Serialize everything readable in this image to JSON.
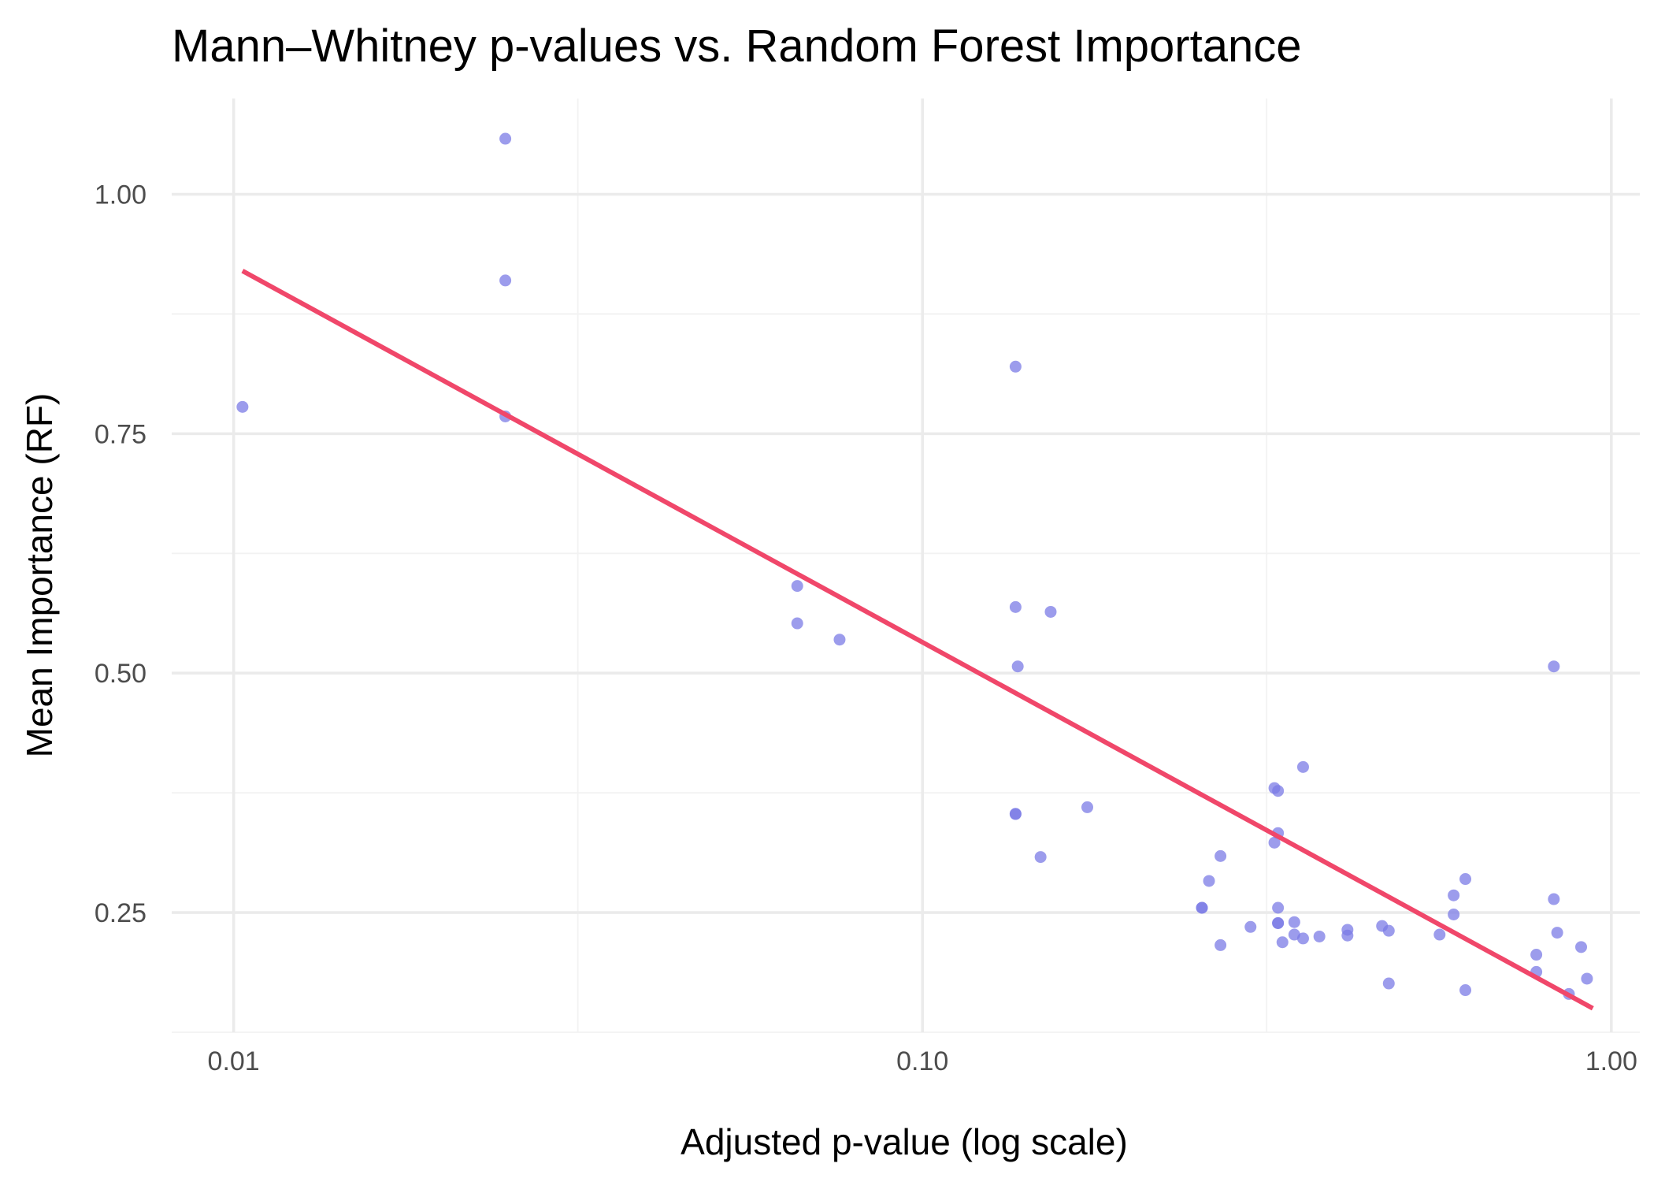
{
  "chart_data": {
    "type": "scatter",
    "title": "Mann–Whitney p-values vs. Random Forest Importance",
    "xlabel": "Adjusted p-value (log scale)",
    "ylabel": "Mean Importance (RF)",
    "x_scale": "log10",
    "xlim": [
      0.00813,
      1.1
    ],
    "ylim": [
      0.125,
      1.1
    ],
    "x_ticks": [
      0.01,
      0.1,
      1
    ],
    "x_tick_labels": [
      "0.01",
      "0.10",
      "1.00"
    ],
    "x_minor_ticks": [
      0.0316,
      0.316
    ],
    "y_ticks": [
      0.25,
      0.5,
      0.75,
      1.0
    ],
    "y_tick_labels": [
      "0.25",
      "0.50",
      "0.75",
      "1.00"
    ],
    "y_minor_ticks": [
      0.125,
      0.375,
      0.625,
      0.875
    ],
    "grid": true,
    "colors": {
      "points": "#7b7be6",
      "trend_line": "#f0476a"
    },
    "trend_line": {
      "type": "linear fit on log10(x)",
      "x": [
        0.0103,
        0.94
      ],
      "y": [
        0.92,
        0.15
      ]
    },
    "points": {
      "x": [
        0.0103,
        0.0248,
        0.0248,
        0.0248,
        0.0658,
        0.0658,
        0.0758,
        0.1365,
        0.1365,
        0.1365,
        0.1375,
        0.1365,
        0.1535,
        0.1484,
        0.1735,
        0.2545,
        0.2545,
        0.2606,
        0.2708,
        0.2708,
        0.2994,
        0.3243,
        0.3243,
        0.3282,
        0.3282,
        0.3282,
        0.3282,
        0.3282,
        0.3331,
        0.3466,
        0.3466,
        0.3569,
        0.3569,
        0.3769,
        0.414,
        0.414,
        0.4647,
        0.4753,
        0.4753,
        0.5633,
        0.5904,
        0.5904,
        0.614,
        0.614,
        0.7783,
        0.7783,
        0.8252,
        0.8252,
        0.8346,
        0.8678,
        0.9041,
        0.9219
      ],
      "y": [
        0.778,
        1.058,
        0.91,
        0.768,
        0.591,
        0.552,
        0.535,
        0.82,
        0.569,
        0.353,
        0.507,
        0.353,
        0.564,
        0.308,
        0.36,
        0.255,
        0.255,
        0.283,
        0.309,
        0.216,
        0.235,
        0.38,
        0.323,
        0.377,
        0.333,
        0.255,
        0.239,
        0.239,
        0.219,
        0.24,
        0.227,
        0.402,
        0.223,
        0.225,
        0.232,
        0.226,
        0.236,
        0.231,
        0.176,
        0.227,
        0.268,
        0.248,
        0.285,
        0.169,
        0.206,
        0.188,
        0.507,
        0.264,
        0.229,
        0.165,
        0.214,
        0.181
      ]
    }
  }
}
